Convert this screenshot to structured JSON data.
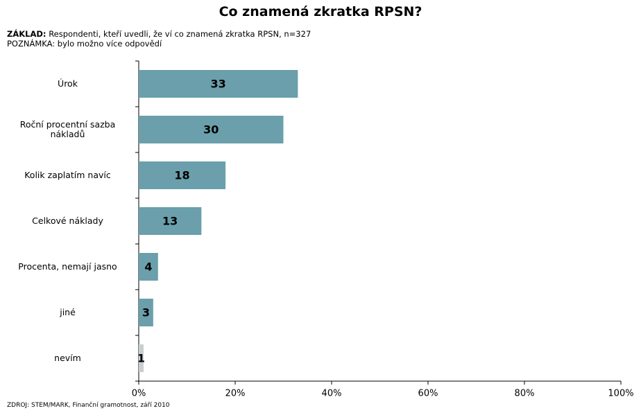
{
  "chart_data": {
    "type": "bar",
    "orientation": "horizontal",
    "title": "Co znamená zkratka RPSN?",
    "subtitle_label": "ZÁKLAD:",
    "subtitle": "Respondenti, kteří uvedli, že ví co znamená zkratka RPSN, n=327",
    "note": "POZNÁMKA: bylo možno více odpovědí",
    "source": "ZDROJ: STEM/MARK, Finanční gramotnost, září 2010",
    "categories": [
      "Úrok",
      "Roční procentní sazba nákladů",
      "Kolik zaplatím navíc",
      "Celkové náklady",
      "Procenta, nemají jasno",
      "jiné",
      "nevím"
    ],
    "values": [
      33,
      30,
      18,
      13,
      4,
      3,
      1
    ],
    "colors": [
      "#6a9fab",
      "#6a9fab",
      "#6a9fab",
      "#6a9fab",
      "#6a9fab",
      "#6a9fab",
      "#c9cfd1"
    ],
    "xlim": [
      0,
      100
    ],
    "xticks": [
      {
        "value": 0,
        "label": "0%"
      },
      {
        "value": 20,
        "label": "20%"
      },
      {
        "value": 40,
        "label": "40%"
      },
      {
        "value": 60,
        "label": "60%"
      },
      {
        "value": 80,
        "label": "80%"
      },
      {
        "value": 100,
        "label": "100%"
      }
    ]
  }
}
